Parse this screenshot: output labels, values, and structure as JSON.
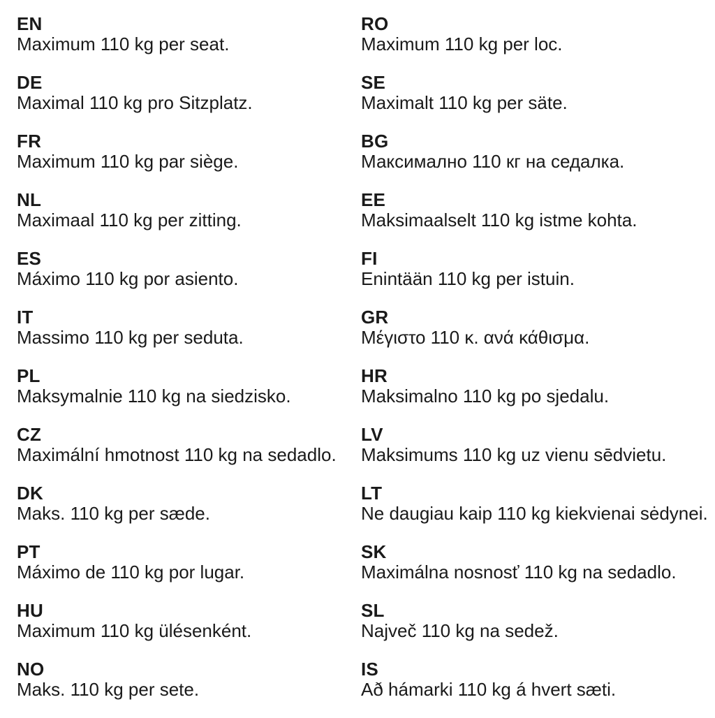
{
  "page": {
    "background_color": "#ffffff",
    "text_color": "#1a1a1a",
    "description": "Multilingual seat weight limit notice"
  },
  "columns": [
    {
      "entries": [
        {
          "code": "EN",
          "text": "Maximum 110 kg per seat."
        },
        {
          "code": "DE",
          "text": "Maximal 110 kg pro Sitzplatz."
        },
        {
          "code": "FR",
          "text": "Maximum 110 kg par siège."
        },
        {
          "code": "NL",
          "text": "Maximaal 110 kg per zitting."
        },
        {
          "code": "ES",
          "text": "Máximo 110 kg por asiento."
        },
        {
          "code": "IT",
          "text": "Massimo 110 kg per seduta."
        },
        {
          "code": "PL",
          "text": "Maksymalnie 110 kg na siedzisko."
        },
        {
          "code": "CZ",
          "text": "Maximální hmotnost 110 kg na sedadlo."
        },
        {
          "code": "DK",
          "text": "Maks. 110 kg per sæde."
        },
        {
          "code": "PT",
          "text": "Máximo de 110 kg por lugar."
        },
        {
          "code": "HU",
          "text": "Maximum 110 kg ülésenként."
        },
        {
          "code": "NO",
          "text": "Maks. 110 kg per sete."
        }
      ]
    },
    {
      "entries": [
        {
          "code": "RO",
          "text": "Maximum 110 kg per loc."
        },
        {
          "code": "SE",
          "text": "Maximalt 110 kg per säte."
        },
        {
          "code": "BG",
          "text": "Максимално 110 кг на седалка."
        },
        {
          "code": "EE",
          "text": "Maksimaalselt 110 kg istme kohta."
        },
        {
          "code": "FI",
          "text": "Enintään 110 kg per istuin."
        },
        {
          "code": "GR",
          "text": "Μέγιστο 110 κ. ανά κάθισμα."
        },
        {
          "code": "HR",
          "text": "Maksimalno 110 kg po sjedalu."
        },
        {
          "code": "LV",
          "text": "Maksimums 110 kg uz vienu sēdvietu."
        },
        {
          "code": "LT",
          "text": "Ne daugiau kaip 110 kg kiekvienai sėdynei."
        },
        {
          "code": "SK",
          "text": "Maximálna nosnosť 110 kg na sedadlo."
        },
        {
          "code": "SL",
          "text": "Največ 110 kg na sedež."
        },
        {
          "code": "IS",
          "text": "Að hámarki 110 kg á hvert sæti."
        }
      ]
    }
  ]
}
